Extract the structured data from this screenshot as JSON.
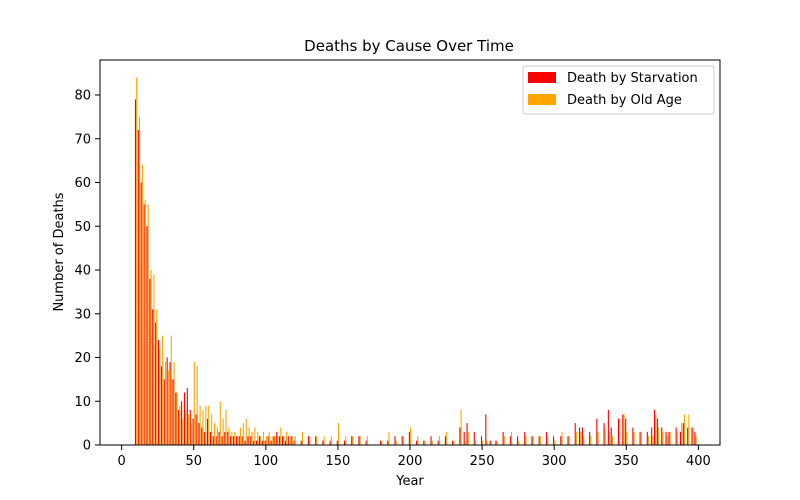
{
  "chart_data": {
    "type": "bar",
    "title": "Deaths by Cause Over Time",
    "xlabel": "Year",
    "ylabel": "Number of Deaths",
    "xlim": [
      -15,
      415
    ],
    "ylim": [
      0,
      88
    ],
    "xticks": [
      0,
      50,
      100,
      150,
      200,
      250,
      300,
      350,
      400
    ],
    "yticks": [
      0,
      10,
      20,
      30,
      40,
      50,
      60,
      70,
      80
    ],
    "grid": false,
    "legend_position": "top-right",
    "stacked": false,
    "x": [
      10,
      12,
      14,
      16,
      18,
      20,
      22,
      24,
      26,
      28,
      30,
      32,
      34,
      36,
      38,
      40,
      42,
      44,
      46,
      48,
      50,
      52,
      54,
      56,
      58,
      60,
      62,
      64,
      66,
      68,
      70,
      72,
      74,
      76,
      78,
      80,
      82,
      84,
      86,
      88,
      90,
      92,
      94,
      96,
      98,
      100,
      102,
      104,
      106,
      108,
      110,
      112,
      114,
      116,
      118,
      120,
      125,
      130,
      135,
      140,
      145,
      150,
      155,
      160,
      165,
      170,
      180,
      185,
      190,
      195,
      200,
      205,
      210,
      215,
      220,
      225,
      230,
      235,
      238,
      240,
      245,
      250,
      253,
      256,
      260,
      265,
      270,
      275,
      280,
      285,
      290,
      295,
      300,
      305,
      310,
      315,
      318,
      320,
      325,
      330,
      335,
      338,
      340,
      345,
      348,
      350,
      355,
      360,
      365,
      368,
      370,
      372,
      375,
      378,
      380,
      385,
      388,
      390,
      393,
      396,
      398
    ],
    "series": [
      {
        "name": "Death by Starvation",
        "color": "#ff0000",
        "values": [
          79,
          72,
          60,
          55,
          50,
          38,
          31,
          28,
          24,
          18,
          15,
          20,
          19,
          15,
          12,
          8,
          10,
          12,
          13,
          8,
          6,
          7,
          5,
          4,
          3,
          6,
          3,
          2,
          2,
          3,
          2,
          3,
          3,
          2,
          2,
          2,
          2,
          2,
          1,
          2,
          2,
          1,
          1,
          2,
          1,
          1,
          2,
          1,
          2,
          3,
          2,
          2,
          1,
          2,
          2,
          1,
          1,
          2,
          2,
          1,
          1,
          1,
          1,
          2,
          2,
          1,
          1,
          1,
          2,
          2,
          3,
          1,
          1,
          2,
          1,
          2,
          1,
          4,
          3,
          5,
          3,
          2,
          7,
          1,
          1,
          3,
          2,
          2,
          3,
          2,
          2,
          3,
          2,
          2,
          2,
          5,
          4,
          4,
          3,
          6,
          5,
          8,
          4,
          6,
          7,
          6,
          4,
          3,
          3,
          4,
          8,
          6,
          4,
          3,
          3,
          4,
          3,
          5,
          4,
          4,
          3
        ]
      },
      {
        "name": "Death by Old Age",
        "color": "#ffa500",
        "values": [
          84,
          75,
          64,
          56,
          55,
          40,
          39,
          31,
          22,
          25,
          19,
          17,
          25,
          19,
          12,
          9,
          6,
          8,
          7,
          5,
          19,
          18,
          9,
          8,
          9,
          9,
          7,
          5,
          4,
          10,
          6,
          8,
          4,
          3,
          3,
          2,
          4,
          5,
          6,
          4,
          3,
          4,
          3,
          2,
          3,
          2,
          3,
          2,
          2,
          2,
          4,
          2,
          3,
          1,
          2,
          2,
          3,
          2,
          2,
          2,
          2,
          5,
          2,
          2,
          2,
          2,
          1,
          3,
          1,
          2,
          4,
          2,
          1,
          1,
          2,
          3,
          1,
          8,
          1,
          3,
          1,
          1,
          1,
          1,
          1,
          2,
          3,
          1,
          2,
          2,
          2,
          2,
          1,
          3,
          2,
          3,
          3,
          2,
          2,
          3,
          4,
          3,
          2,
          6,
          7,
          3,
          3,
          3,
          2,
          2,
          7,
          4,
          3,
          2,
          3,
          3,
          5,
          7,
          7,
          4,
          2
        ]
      }
    ]
  }
}
